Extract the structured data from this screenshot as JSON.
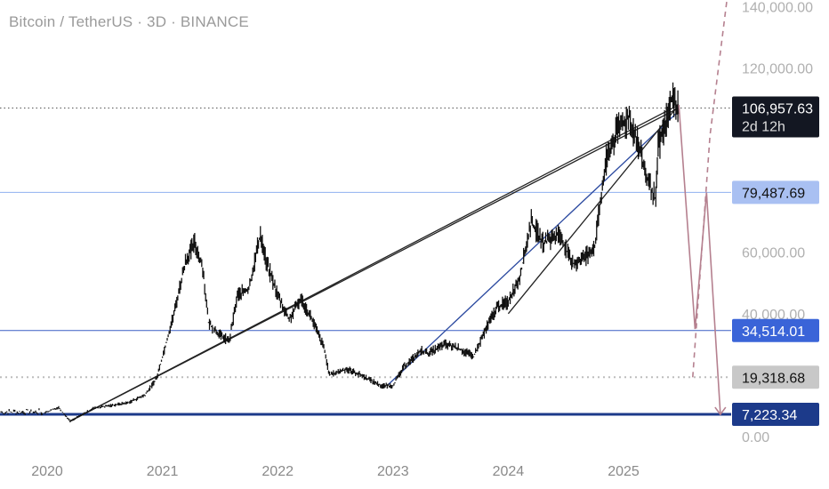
{
  "chart_title": "Bitcoin / TetherUS · 3D · BINANCE",
  "colors": {
    "candle": "#111111",
    "blue_line": "#8fb0f0",
    "navy_line": "#1c3a8a",
    "trend_black": "#222222",
    "trend_blue": "#2c4aa0",
    "projection": "#b5808f",
    "dotted": "#bdbdbd"
  },
  "chart_data": {
    "type": "line",
    "title": "Bitcoin / TetherUS · 3D · BINANCE",
    "x_ticks": [
      "2020",
      "2021",
      "2022",
      "2023",
      "2024",
      "2025"
    ],
    "y_ticks": [
      "140,000.00",
      "120,000.00",
      "60,000.00",
      "40,000.00",
      "0.00"
    ],
    "ylim": [
      0,
      140000
    ],
    "grid": false,
    "price_path": [
      [
        2019.95,
        7300
      ],
      [
        2020.1,
        9500
      ],
      [
        2020.2,
        5000
      ],
      [
        2020.4,
        9200
      ],
      [
        2020.7,
        11000
      ],
      [
        2020.85,
        13500
      ],
      [
        2020.95,
        19000
      ],
      [
        2021.05,
        33000
      ],
      [
        2021.1,
        40000
      ],
      [
        2021.2,
        57000
      ],
      [
        2021.28,
        63000
      ],
      [
        2021.35,
        55000
      ],
      [
        2021.4,
        37000
      ],
      [
        2021.5,
        33000
      ],
      [
        2021.58,
        31000
      ],
      [
        2021.65,
        46000
      ],
      [
        2021.75,
        48000
      ],
      [
        2021.85,
        66000
      ],
      [
        2021.9,
        57000
      ],
      [
        2022.0,
        46000
      ],
      [
        2022.1,
        38000
      ],
      [
        2022.2,
        45000
      ],
      [
        2022.3,
        38000
      ],
      [
        2022.4,
        29000
      ],
      [
        2022.45,
        20000
      ],
      [
        2022.6,
        22000
      ],
      [
        2022.75,
        19500
      ],
      [
        2022.9,
        16500
      ],
      [
        2023.0,
        16600
      ],
      [
        2023.1,
        23000
      ],
      [
        2023.25,
        28000
      ],
      [
        2023.3,
        27000
      ],
      [
        2023.45,
        30000
      ],
      [
        2023.55,
        29000
      ],
      [
        2023.7,
        26000
      ],
      [
        2023.8,
        34500
      ],
      [
        2023.9,
        42000
      ],
      [
        2024.0,
        44000
      ],
      [
        2024.1,
        52000
      ],
      [
        2024.2,
        70000
      ],
      [
        2024.3,
        63000
      ],
      [
        2024.45,
        66000
      ],
      [
        2024.55,
        56000
      ],
      [
        2024.65,
        58000
      ],
      [
        2024.75,
        62000
      ],
      [
        2024.85,
        90000
      ],
      [
        2024.95,
        100000
      ],
      [
        2025.05,
        104000
      ],
      [
        2025.12,
        96000
      ],
      [
        2025.2,
        84000
      ],
      [
        2025.28,
        77000
      ],
      [
        2025.3,
        94000
      ],
      [
        2025.38,
        104000
      ],
      [
        2025.42,
        110000
      ],
      [
        2025.48,
        106957.63
      ]
    ],
    "horizontal_levels": [
      {
        "value": 106957.63,
        "label": "106,957.63",
        "sub": "2d 12h"
      },
      {
        "value": 79487.69,
        "label": "79,487.69"
      },
      {
        "value": 34514.01,
        "label": "34,514.01"
      },
      {
        "value": 19318.68,
        "label": "19,318.68"
      },
      {
        "value": 7223.34,
        "label": "7,223.34"
      }
    ],
    "trend_lines": [
      {
        "from": [
          2020.2,
          5000
        ],
        "to": [
          2025.48,
          108000
        ]
      },
      {
        "from": [
          2020.2,
          5000
        ],
        "to": [
          2025.48,
          107000
        ]
      },
      {
        "from": [
          2022.95,
          16600
        ],
        "to": [
          2025.48,
          106000
        ]
      },
      {
        "from": [
          2024.0,
          40000
        ],
        "to": [
          2025.48,
          108000
        ]
      }
    ],
    "projections": [
      {
        "path": [
          [
            2025.48,
            108000
          ],
          [
            2025.62,
            35000
          ],
          [
            2025.72,
            79500
          ],
          [
            2025.84,
            7223
          ]
        ],
        "style": "solid"
      },
      {
        "path": [
          [
            2025.6,
            19318
          ],
          [
            2025.75,
            98000
          ],
          [
            2025.9,
            143000
          ]
        ],
        "style": "dashed"
      }
    ]
  },
  "price_labels": [
    {
      "text": "106,957.63",
      "sub": "2d 12h"
    },
    {
      "text": "79,487.69"
    },
    {
      "text": "34,514.01"
    },
    {
      "text": "19,318.68"
    },
    {
      "text": "7,223.34"
    }
  ]
}
